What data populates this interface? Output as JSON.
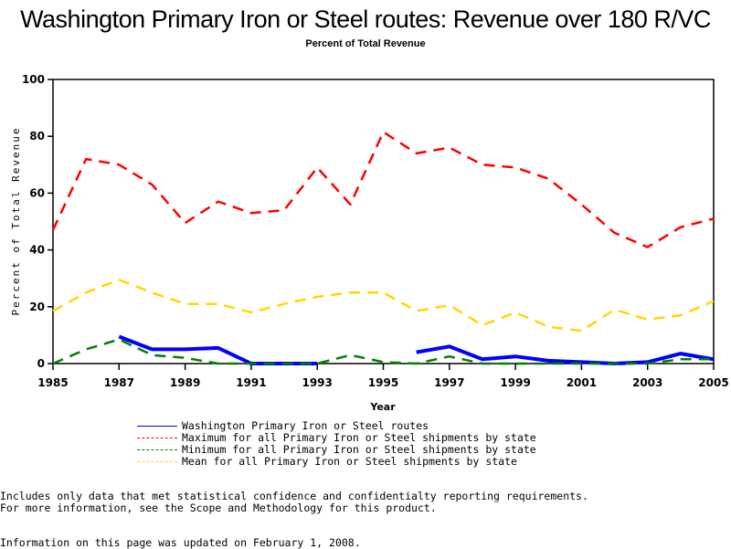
{
  "header": {
    "title": "Washington Primary Iron or Steel routes: Revenue over 180 R/VC",
    "subtitle": "Percent of Total Revenue"
  },
  "chart_data": {
    "type": "line",
    "title": "Washington Primary Iron or Steel routes: Revenue over 180 R/VC",
    "subtitle": "Percent of Total Revenue",
    "xlabel": "Year",
    "ylabel": "Percent of Total Revenue",
    "xlim": [
      1985,
      2005
    ],
    "ylim": [
      0,
      100
    ],
    "x_ticks": [
      "1985",
      "1987",
      "1989",
      "1991",
      "1993",
      "1995",
      "1997",
      "1999",
      "2001",
      "2003",
      "2005"
    ],
    "y_ticks": [
      "0",
      "20",
      "40",
      "60",
      "80",
      "100"
    ],
    "grid": false,
    "legend_position": "bottom",
    "x": [
      1985,
      1986,
      1987,
      1988,
      1989,
      1990,
      1991,
      1992,
      1993,
      1994,
      1995,
      1996,
      1997,
      1998,
      1999,
      2000,
      2001,
      2002,
      2003,
      2004,
      2005
    ],
    "series": [
      {
        "name": "Washington Primary Iron or Steel routes",
        "color": "#0000ff",
        "style": "solid",
        "values": [
          null,
          null,
          9.5,
          5,
          5,
          5.5,
          0,
          0,
          0,
          null,
          null,
          4,
          6,
          1.5,
          2.5,
          1,
          0.5,
          0,
          0.5,
          3.5,
          1.5
        ]
      },
      {
        "name": "Maximum for all Primary Iron or Steel shipments by state",
        "color": "#ff0000",
        "style": "dashed",
        "values": [
          47,
          72,
          70,
          63,
          49.5,
          57,
          53,
          54,
          69,
          56,
          81.5,
          74,
          76,
          70,
          69,
          65,
          56,
          46,
          41,
          48,
          51
        ]
      },
      {
        "name": "Minimum for all Primary Iron or Steel shipments by state",
        "color": "#008000",
        "style": "dashed",
        "values": [
          0,
          5,
          8.5,
          3,
          2,
          0,
          0,
          0,
          0,
          3,
          0.5,
          0,
          2.5,
          0,
          0,
          0,
          0,
          0,
          0,
          1.5,
          1.5
        ]
      },
      {
        "name": "Mean for all Primary Iron or Steel shipments by state",
        "color": "#ffd700",
        "style": "dashed",
        "values": [
          18.5,
          25,
          29.5,
          25,
          21,
          21,
          18,
          21,
          23.5,
          25,
          25,
          18.5,
          20.5,
          13.5,
          18,
          13,
          11.5,
          19,
          15.5,
          17,
          22
        ]
      }
    ]
  },
  "footer": {
    "note_line1": "Includes only data that met statistical confidence and confidentialty reporting requirements.",
    "note_line2": "For more information, see the Scope and Methodology for this product.",
    "updated": "Information on this page was updated on February 1, 2008."
  }
}
